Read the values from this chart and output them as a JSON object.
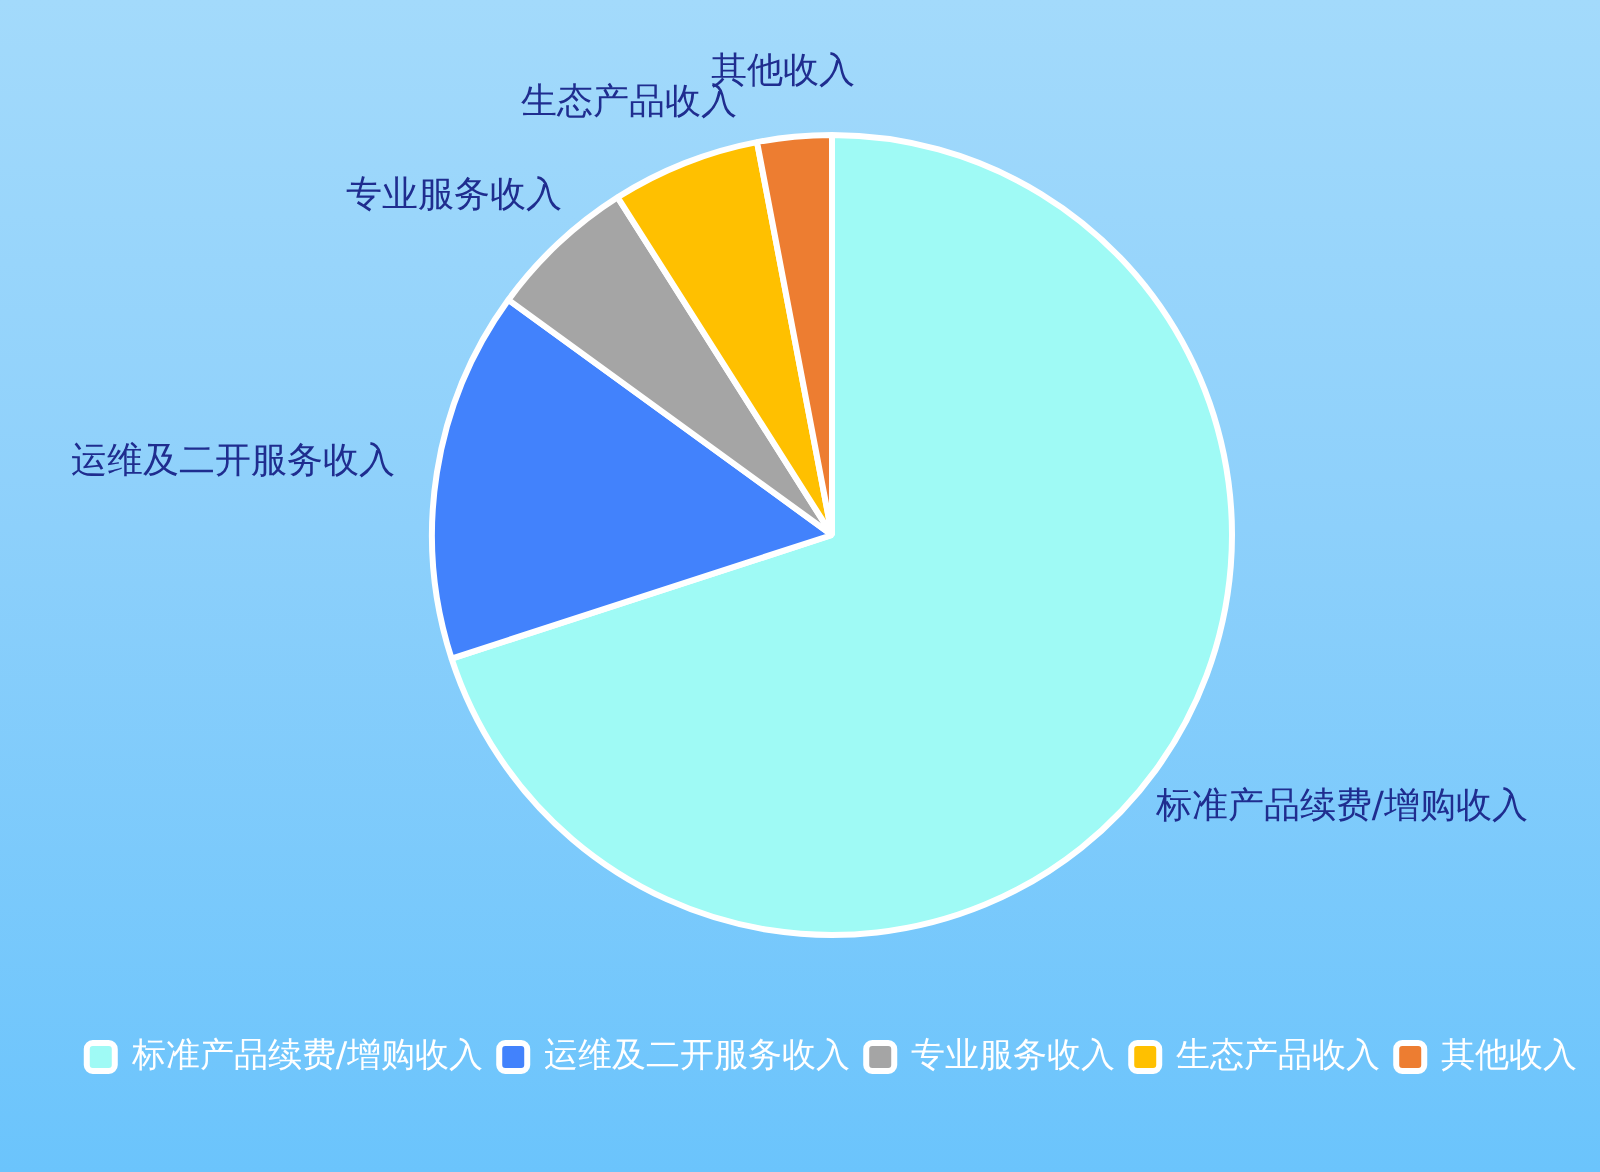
{
  "chart_data": {
    "type": "pie",
    "categories": [
      "标准产品续费/增购收入",
      "运维及二开服务收入",
      "专业服务收入",
      "生态产品收入",
      "其他收入"
    ],
    "values": [
      70,
      15,
      6,
      6,
      3
    ],
    "colors": [
      "#9ffaf5",
      "#4282fc",
      "#a5a5a5",
      "#ffc000",
      "#ed7d31"
    ],
    "legend": "bottom"
  }
}
